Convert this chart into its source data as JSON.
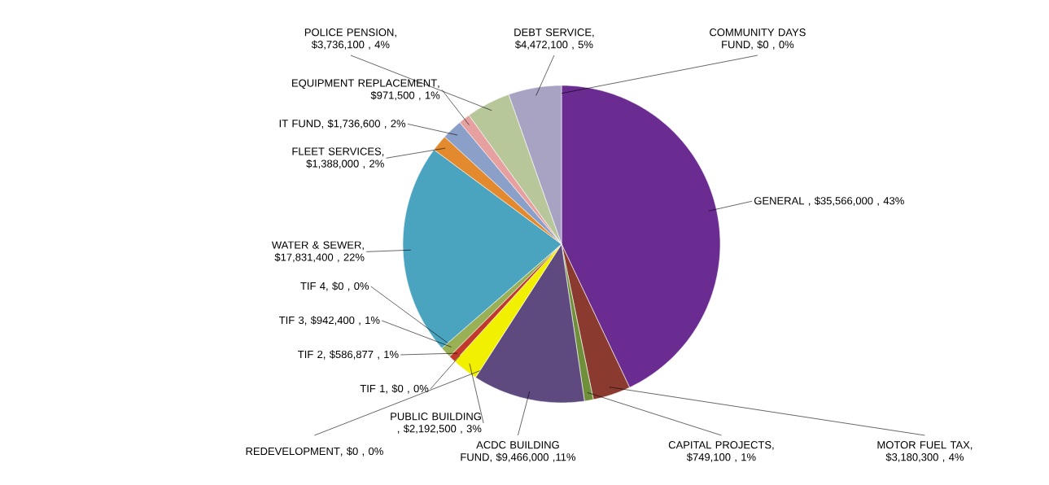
{
  "chart_data": {
    "type": "pie",
    "categories": [
      "GENERAL",
      "MOTOR FUEL TAX",
      "CAPITAL PROJECTS",
      "ACDC BUILDING FUND",
      "REDEVELOPMENT",
      "PUBLIC BUILDING",
      "TIF 1",
      "TIF 2",
      "TIF 3",
      "TIF 4",
      "WATER & SEWER",
      "FLEET SERVICES",
      "IT FUND",
      "EQUIPMENT REPLACEMENT",
      "POLICE PENSION",
      "DEBT SERVICE",
      "COMMUNITY DAYS FUND"
    ],
    "values": [
      35566000,
      3180300,
      749100,
      9466000,
      0,
      2192500,
      0,
      586877,
      942400,
      0,
      17831400,
      1388000,
      1736600,
      971500,
      3736100,
      4472100,
      0
    ],
    "value_labels": [
      " , $35,566,000 , 43%",
      ", $3,180,300 , 4%",
      ", $749,100 , 1%",
      ", $9,466,000 ,11%",
      ", $0 , 0%",
      " , $2,192,500 , 3%",
      ", $0 , 0%",
      ", $586,877 , 1%",
      ", $942,400 , 1%",
      ", $0 , 0%",
      ", $17,831,400 , 22%",
      ", $1,388,000 , 2%",
      ", $1,736,600 , 2%",
      ", $971,500 , 1%",
      ", $3,736,100 , 4%",
      ", $4,472,100 , 5%",
      ", $0 , 0%"
    ],
    "colors": [
      "#6a2c91",
      "#8b3a2f",
      "#6f8f3a",
      "#5e4a7e",
      "#a9a3c3",
      "#f0f000",
      "#9ab054",
      "#c0392b",
      "#9ab054",
      "#4aa3bf",
      "#4aa3bf",
      "#e38a2f",
      "#8aa0c8",
      "#e6a0a0",
      "#b7c79a",
      "#a9a3c3",
      "#6a2c91"
    ]
  }
}
